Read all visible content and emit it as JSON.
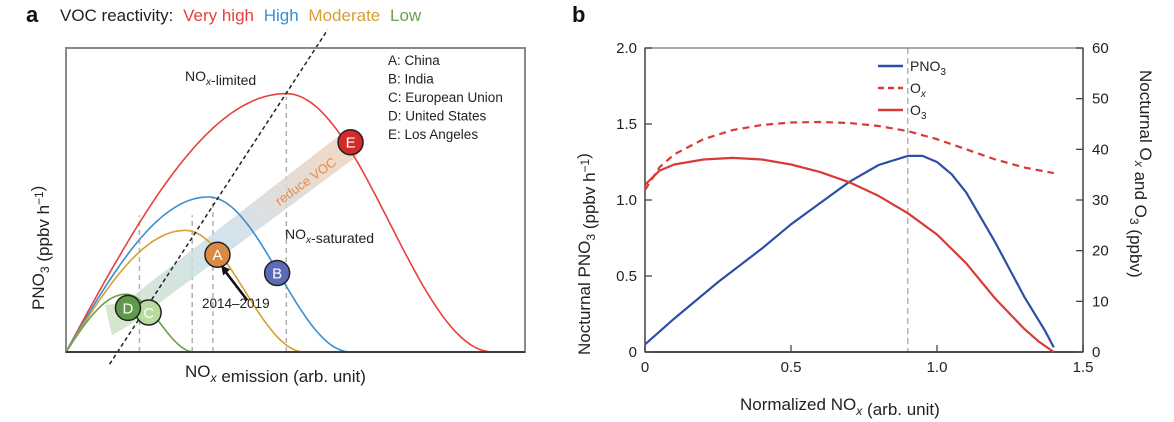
{
  "chart_data": [
    {
      "panel": "a",
      "type": "line",
      "title_prefix": "VOC reactivity:",
      "legend": [
        {
          "name": "Very high",
          "color": "#e8403b"
        },
        {
          "name": "High",
          "color": "#3a8fcf"
        },
        {
          "name": "Moderate",
          "color": "#d4a032"
        },
        {
          "name": "Low",
          "color": "#6aa04f"
        }
      ],
      "xlabel": "NOx emission (arb. unit)",
      "ylabel": "PNO3 (ppbv h-1)",
      "xlim": [
        0,
        10
      ],
      "ylim": [
        0,
        10
      ],
      "curves": [
        {
          "name": "Very high",
          "color": "#e8403b",
          "peak_x": 4.8,
          "peak_y": 8.5,
          "end_x": 9.3
        },
        {
          "name": "High",
          "color": "#3a8fcf",
          "peak_x": 3.1,
          "peak_y": 5.1,
          "end_x": 6.2
        },
        {
          "name": "Moderate",
          "color": "#d4a032",
          "peak_x": 2.6,
          "peak_y": 4.0,
          "end_x": 5.2
        },
        {
          "name": "Low",
          "color": "#6aa04f",
          "peak_x": 1.3,
          "peak_y": 1.9,
          "end_x": 2.8
        }
      ],
      "vlines_x": [
        1.6,
        2.75,
        3.2,
        4.8
      ],
      "boundary_line": {
        "label_limited": "NOx-limited",
        "label_saturated": "NOx-saturated"
      },
      "markers": [
        {
          "id": "A",
          "x": 3.3,
          "y": 3.2,
          "color": "#d98a45"
        },
        {
          "id": "B",
          "x": 4.6,
          "y": 2.6,
          "color": "#5b6bb5"
        },
        {
          "id": "C",
          "x": 1.8,
          "y": 1.3,
          "color": "#b8dba0"
        },
        {
          "id": "D",
          "x": 1.35,
          "y": 1.45,
          "color": "#5e9a4a"
        },
        {
          "id": "E",
          "x": 6.2,
          "y": 6.9,
          "color": "#d42a2a"
        }
      ],
      "region_legend": [
        "A: China",
        "B: India",
        "C: European Union",
        "D: United States",
        "E: Los Angeles"
      ],
      "arrow_label": "reduce VOC",
      "annotation": "2014–2019"
    },
    {
      "panel": "b",
      "type": "line",
      "xlabel": "Normalized NOx (arb. unit)",
      "ylabel_left": "Nocturnal PNO3 (ppbv h-1)",
      "ylabel_right": "Nocturnal Ox and O3 (ppbv)",
      "xlim": [
        0,
        1.5
      ],
      "ylim_left": [
        0,
        2.0
      ],
      "ylim_right": [
        0,
        60
      ],
      "xticks": [
        "0",
        "0.5",
        "1.0",
        "1.5"
      ],
      "yticks_left": [
        "0",
        "0.5",
        "1.0",
        "1.5",
        "2.0"
      ],
      "yticks_right": [
        "0",
        "10",
        "20",
        "30",
        "40",
        "50",
        "60"
      ],
      "vline_x": 0.9,
      "series": [
        {
          "name": "PNO3",
          "axis": "left",
          "color": "#2e4fa3",
          "dash": false,
          "x": [
            0,
            0.1,
            0.25,
            0.4,
            0.5,
            0.6,
            0.7,
            0.8,
            0.9,
            0.95,
            1.0,
            1.05,
            1.1,
            1.2,
            1.3,
            1.37,
            1.4
          ],
          "y": [
            0.05,
            0.22,
            0.46,
            0.68,
            0.84,
            0.98,
            1.12,
            1.23,
            1.29,
            1.29,
            1.25,
            1.17,
            1.05,
            0.72,
            0.36,
            0.14,
            0.03
          ]
        },
        {
          "name": "Ox",
          "axis": "right",
          "color": "#d93a36",
          "dash": true,
          "x": [
            0,
            0.05,
            0.1,
            0.2,
            0.3,
            0.4,
            0.5,
            0.6,
            0.7,
            0.8,
            0.9,
            1.0,
            1.1,
            1.2,
            1.3,
            1.4
          ],
          "y": [
            32,
            36.5,
            39,
            42,
            43.8,
            44.8,
            45.3,
            45.4,
            45.2,
            44.6,
            43.6,
            42,
            40,
            38,
            36.4,
            35.3
          ]
        },
        {
          "name": "O3",
          "axis": "right",
          "color": "#d93a36",
          "dash": false,
          "x": [
            0,
            0.05,
            0.1,
            0.2,
            0.3,
            0.4,
            0.5,
            0.6,
            0.7,
            0.8,
            0.9,
            1.0,
            1.1,
            1.2,
            1.3,
            1.35,
            1.4
          ],
          "y": [
            33,
            35.8,
            37,
            38,
            38.3,
            38,
            37,
            35.5,
            33.5,
            30.8,
            27.4,
            23.2,
            17.5,
            10.5,
            4.5,
            2,
            0
          ]
        }
      ]
    }
  ],
  "labels": {
    "panel_a": "a",
    "panel_b": "b",
    "legend_b": [
      "PNO3",
      "Ox",
      "O3"
    ]
  }
}
